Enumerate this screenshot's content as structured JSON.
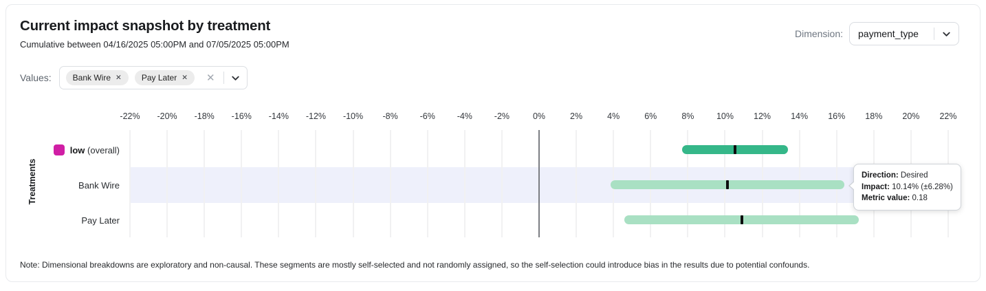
{
  "card": {
    "title": "Current impact snapshot by treatment",
    "subtitle": "Cumulative between 04/16/2025 05:00PM and 07/05/2025 05:00PM",
    "note": "Note: Dimensional breakdowns are exploratory and non-causal. These segments are mostly self-selected and not randomly assigned, so the self-selection could introduce bias in the results due to potential confounds."
  },
  "dimension": {
    "label": "Dimension:",
    "value": "payment_type"
  },
  "values_filter": {
    "label": "Values:",
    "chips": [
      {
        "label": "Bank Wire"
      },
      {
        "label": "Pay Later"
      }
    ],
    "chip_remove_icon": "✕",
    "clear_icon": "✕"
  },
  "chart_data": {
    "type": "bar",
    "orientation": "horizontal",
    "title": "",
    "xlabel": "",
    "ylabel": "Treatments",
    "x_axis": {
      "min": -22,
      "max": 22,
      "step": 2,
      "unit": "%",
      "ticks": [
        -22,
        -20,
        -18,
        -16,
        -14,
        -12,
        -10,
        -8,
        -6,
        -4,
        -2,
        0,
        2,
        4,
        6,
        8,
        10,
        12,
        14,
        16,
        18,
        20,
        22
      ],
      "tick_labels": [
        "-22%",
        "-20%",
        "-18%",
        "-16%",
        "-14%",
        "-12%",
        "-10%",
        "-8%",
        "-6%",
        "-4%",
        "-2%",
        "0%",
        "2%",
        "4%",
        "6%",
        "8%",
        "10%",
        "12%",
        "14%",
        "16%",
        "18%",
        "20%",
        "22%"
      ]
    },
    "grid": true,
    "zero_line": true,
    "highlight_color": "#eef0fb",
    "center_tick_color": "#0d0e0f",
    "rows": [
      {
        "label": "low",
        "label_note": "(overall)",
        "swatch_color": "#d01fa5",
        "bar_color": "#35b789",
        "low": 7.7,
        "high": 13.4,
        "center": 10.55,
        "highlighted": false
      },
      {
        "label": "Bank Wire",
        "bar_color": "#a9e0c3",
        "low": 3.86,
        "high": 16.42,
        "center": 10.14,
        "highlighted": true
      },
      {
        "label": "Pay Later",
        "bar_color": "#a9e0c3",
        "low": 4.6,
        "high": 17.2,
        "center": 10.9,
        "highlighted": false
      }
    ]
  },
  "tooltip": {
    "target_row": "Bank Wire",
    "lines": [
      {
        "label": "Direction:",
        "value": "Desired"
      },
      {
        "label": "Impact:",
        "value": "10.14% (±6.28%)"
      },
      {
        "label": "Metric value:",
        "value": "0.18"
      }
    ]
  }
}
